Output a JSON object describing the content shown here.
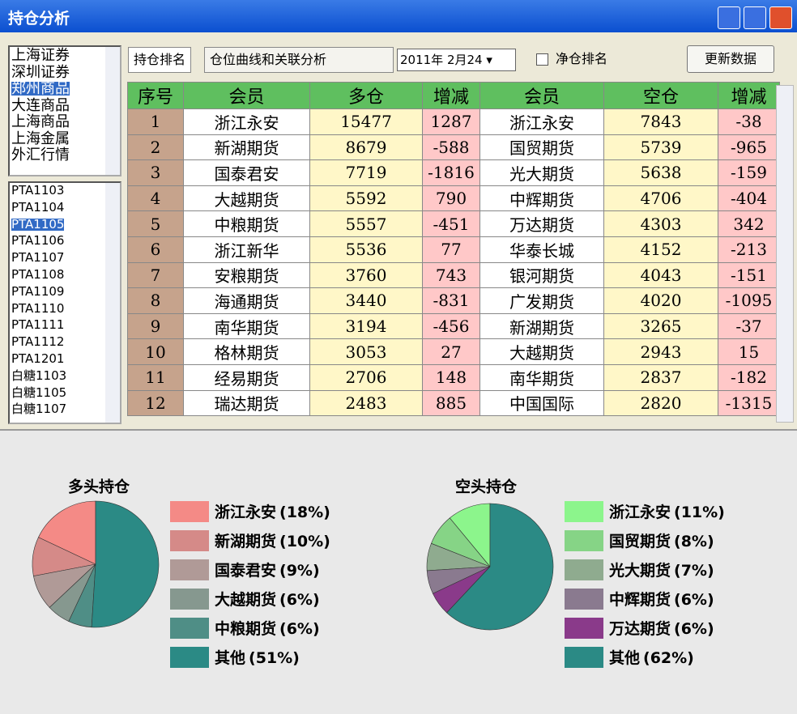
{
  "window": {
    "title": "持仓分析"
  },
  "exchanges": {
    "items": [
      "上海证券",
      "深圳证券",
      "郑州商品",
      "大连商品",
      "上海商品",
      "上海金属",
      "外汇行情"
    ],
    "selected": 2
  },
  "contracts": {
    "items": [
      "PTA1103",
      "PTA1104",
      "PTA1105",
      "PTA1106",
      "PTA1107",
      "PTA1108",
      "PTA1109",
      "PTA1110",
      "PTA1111",
      "PTA1112",
      "PTA1201",
      "白糖1103",
      "白糖1105",
      "白糖1107"
    ],
    "selected": 2
  },
  "tabs": [
    "持仓排名",
    "仓位曲线和关联分析"
  ],
  "date": "2011年 2月24",
  "checkbox": "净仓排名",
  "button": "更新数据",
  "table": {
    "columns": [
      "序号",
      "会员",
      "多仓",
      "增减",
      "会员",
      "空仓",
      "增减"
    ],
    "rows": [
      [
        1,
        "浙江永安",
        15477,
        1287,
        "浙江永安",
        7843,
        -38
      ],
      [
        2,
        "新湖期货",
        8679,
        -588,
        "国贸期货",
        5739,
        -965
      ],
      [
        3,
        "国泰君安",
        7719,
        -1816,
        "光大期货",
        5638,
        -159
      ],
      [
        4,
        "大越期货",
        5592,
        790,
        "中辉期货",
        4706,
        -404
      ],
      [
        5,
        "中粮期货",
        5557,
        -451,
        "万达期货",
        4303,
        342
      ],
      [
        6,
        "浙江新华",
        5536,
        77,
        "华泰长城",
        4152,
        -213
      ],
      [
        7,
        "安粮期货",
        3760,
        743,
        "银河期货",
        4043,
        -151
      ],
      [
        8,
        "海通期货",
        3440,
        -831,
        "广发期货",
        4020,
        -1095
      ],
      [
        9,
        "南华期货",
        3194,
        -456,
        "新湖期货",
        3265,
        -37
      ],
      [
        10,
        "格林期货",
        3053,
        27,
        "大越期货",
        2943,
        15
      ],
      [
        11,
        "经易期货",
        2706,
        148,
        "南华期货",
        2837,
        -182
      ],
      [
        12,
        "瑞达期货",
        2483,
        885,
        "中国国际",
        2820,
        -1315
      ]
    ]
  },
  "chart_data": [
    {
      "type": "pie",
      "title": "多头持仓",
      "categories": [
        "浙江永安",
        "新湖期货",
        "国泰君安",
        "大越期货",
        "中粮期货",
        "其他"
      ],
      "values": [
        18,
        10,
        9,
        6,
        6,
        51
      ],
      "value_labels": [
        "(18%)",
        "(10%)",
        "(9%)",
        "(6%)",
        "(6%)",
        "(51%)"
      ],
      "colors": [
        "#f48a86",
        "#d58a88",
        "#b09a97",
        "#86988f",
        "#4f8e86",
        "#2b8a85"
      ]
    },
    {
      "type": "pie",
      "title": "空头持仓",
      "categories": [
        "浙江永安",
        "国贸期货",
        "光大期货",
        "中辉期货",
        "万达期货",
        "其他"
      ],
      "values": [
        11,
        8,
        7,
        6,
        6,
        62
      ],
      "value_labels": [
        "(11%)",
        "(8%)",
        "(7%)",
        "(6%)",
        "(6%)",
        "(62%)"
      ],
      "colors": [
        "#8cf58c",
        "#86d486",
        "#8fab8f",
        "#8a7a8f",
        "#8a3a8a",
        "#2b8a85"
      ]
    }
  ]
}
